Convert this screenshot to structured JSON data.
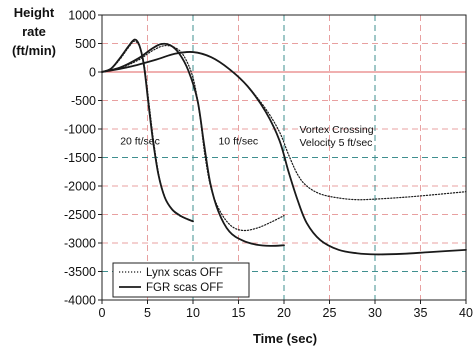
{
  "chart_data": {
    "type": "line",
    "xlabel": "Time (sec)",
    "ylabel": [
      "Height",
      "rate",
      "(ft/min)"
    ],
    "xlim": [
      0,
      40
    ],
    "ylim": [
      -4000,
      1000
    ],
    "xticks": [
      0,
      5,
      10,
      15,
      20,
      25,
      30,
      35,
      40
    ],
    "yticks": [
      1000,
      500,
      0,
      -500,
      -1000,
      -1500,
      -2000,
      -2500,
      -3000,
      -3500,
      -4000
    ],
    "grid": {
      "horizontal_major": {
        "values": [
          0
        ],
        "color": "#e06060",
        "style": "solid"
      },
      "horizontal_grid": {
        "values": [
          500,
          -500,
          -1000,
          -2000,
          -2500,
          -3000,
          -4000
        ],
        "color": "#e8a0a0",
        "style": "dashed"
      },
      "horizontal_emph": {
        "values": [
          -1500,
          -3500
        ],
        "color": "#3f8f8f",
        "style": "dashed"
      },
      "vertical_grid": {
        "values": [
          5,
          15,
          25,
          35
        ],
        "color": "#e8a0a0",
        "style": "dashed"
      },
      "vertical_emph": {
        "values": [
          10,
          20,
          30
        ],
        "color": "#3f8f8f",
        "style": "dashed"
      }
    },
    "annotations": [
      {
        "text": "20 ft/sec",
        "x": 2.0,
        "y": -1200
      },
      {
        "text": "10 ft/sec",
        "x": 12.8,
        "y": -1200
      },
      {
        "text": "Vortex Crossing",
        "x": 21.7,
        "y": -1000
      },
      {
        "text": "Velocity 5 ft/sec",
        "x": 21.7,
        "y": -1230
      }
    ],
    "legend": {
      "placement": "bottom-left",
      "entries": [
        {
          "label": "Lynx scas OFF",
          "style": "dotted"
        },
        {
          "label": "FGR scas OFF",
          "style": "solid"
        }
      ]
    },
    "series": [
      {
        "name": "Lynx scas OFF",
        "group": "20 ft/sec",
        "style": "dotted",
        "color": "#1a1a1a",
        "x": [
          0,
          1,
          2,
          3,
          3.6,
          4.2,
          4.7,
          5.2,
          5.7,
          6.3,
          7,
          7.8,
          8.5,
          9.2,
          10
        ],
        "y": [
          0,
          60,
          230,
          450,
          540,
          420,
          60,
          -600,
          -1250,
          -1850,
          -2230,
          -2430,
          -2520,
          -2570,
          -2620
        ]
      },
      {
        "name": "FGR scas OFF",
        "group": "20 ft/sec",
        "style": "solid",
        "color": "#1a1a1a",
        "x": [
          0,
          1,
          2,
          3,
          3.6,
          4.1,
          4.6,
          5.1,
          5.6,
          6.2,
          6.9,
          7.7,
          8.5,
          9.2,
          10
        ],
        "y": [
          0,
          60,
          250,
          470,
          570,
          470,
          120,
          -550,
          -1200,
          -1800,
          -2200,
          -2410,
          -2510,
          -2570,
          -2620
        ]
      },
      {
        "name": "Lynx scas OFF",
        "group": "10 ft/sec",
        "style": "dotted",
        "color": "#1a1a1a",
        "x": [
          0,
          2,
          4,
          5.5,
          6.8,
          8,
          9,
          10,
          10.7,
          11.3,
          12,
          13,
          14.2,
          15.5,
          17,
          18.5,
          20
        ],
        "y": [
          0,
          70,
          210,
          370,
          460,
          430,
          280,
          -100,
          -700,
          -1450,
          -2050,
          -2450,
          -2700,
          -2780,
          -2740,
          -2640,
          -2520
        ]
      },
      {
        "name": "FGR scas OFF",
        "group": "10 ft/sec",
        "style": "solid",
        "color": "#1a1a1a",
        "x": [
          0,
          2,
          4,
          5.5,
          6.5,
          7.5,
          8.5,
          9.5,
          10.5,
          11.2,
          11.9,
          12.8,
          14,
          15.5,
          17,
          18.5,
          20
        ],
        "y": [
          0,
          80,
          240,
          410,
          490,
          470,
          320,
          20,
          -500,
          -1250,
          -1950,
          -2450,
          -2800,
          -2960,
          -3030,
          -3050,
          -3040
        ]
      },
      {
        "name": "Lynx scas OFF",
        "group": "Vortex Crossing Velocity 5 ft/sec",
        "style": "dotted",
        "color": "#1a1a1a",
        "x": [
          0,
          3,
          6,
          8,
          10,
          12,
          14,
          16,
          18,
          19.5,
          20.5,
          21.5,
          22.5,
          24,
          26,
          28,
          30,
          33,
          36,
          40
        ],
        "y": [
          0,
          90,
          220,
          320,
          350,
          260,
          50,
          -250,
          -650,
          -1050,
          -1450,
          -1800,
          -2000,
          -2140,
          -2210,
          -2240,
          -2230,
          -2200,
          -2160,
          -2100
        ]
      },
      {
        "name": "FGR scas OFF",
        "group": "Vortex Crossing Velocity 5 ft/sec",
        "style": "solid",
        "color": "#1a1a1a",
        "x": [
          0,
          3,
          6,
          8,
          10,
          12,
          14,
          16,
          18,
          19.5,
          20.5,
          21.5,
          22.5,
          24,
          26,
          28,
          30,
          33,
          36,
          40
        ],
        "y": [
          0,
          90,
          220,
          320,
          350,
          260,
          50,
          -250,
          -700,
          -1200,
          -1750,
          -2250,
          -2650,
          -2950,
          -3120,
          -3180,
          -3200,
          -3190,
          -3160,
          -3120
        ]
      }
    ]
  }
}
